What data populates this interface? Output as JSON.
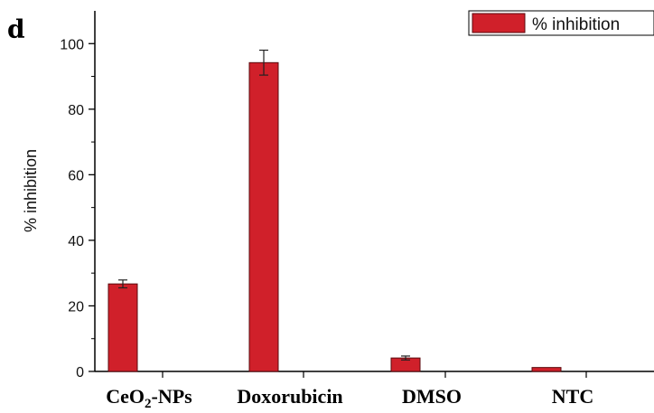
{
  "panel_label": "d",
  "chart_data": {
    "type": "bar",
    "categories": [
      "CeO2-NPs",
      "Doxorubicin",
      "DMSO",
      "NTC"
    ],
    "series": [
      {
        "name": "% inhibition",
        "values": [
          26.7,
          94.2,
          4.1,
          1.2
        ],
        "errors": [
          1.2,
          3.8,
          0.6,
          0.0
        ]
      }
    ],
    "xlabel": "",
    "ylabel": "% inhibition",
    "ylim": [
      0,
      110
    ],
    "yticks": [
      0,
      20,
      40,
      60,
      80,
      100
    ],
    "legend": "top-right",
    "grid": false,
    "colors": {
      "bar": "#d0202a",
      "bar_edge": "#5a0a0e",
      "axis": "#000000"
    }
  }
}
